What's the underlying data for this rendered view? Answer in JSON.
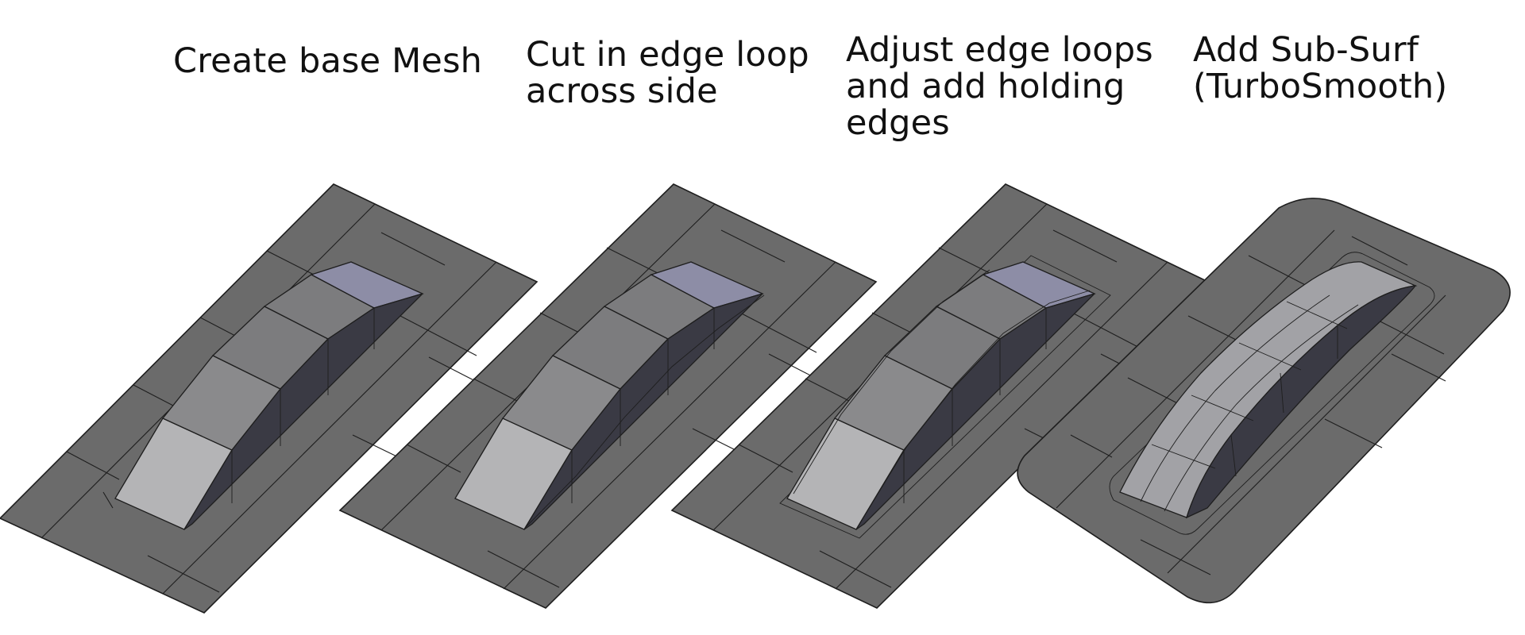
{
  "steps": [
    {
      "caption": "Create base Mesh"
    },
    {
      "caption": "Cut in edge loop\nacross side"
    },
    {
      "caption": "Adjust edge loops\nand add holding\nedges"
    },
    {
      "caption": "Add Sub-Surf\n(TurboSmooth)"
    }
  ],
  "colors": {
    "plate": "#6b6b6b",
    "ramp_top": "#a2a2a6",
    "ramp_end": "#8d8da6",
    "ramp_side": "#3a3a44",
    "lines": "#1e1e1e"
  }
}
